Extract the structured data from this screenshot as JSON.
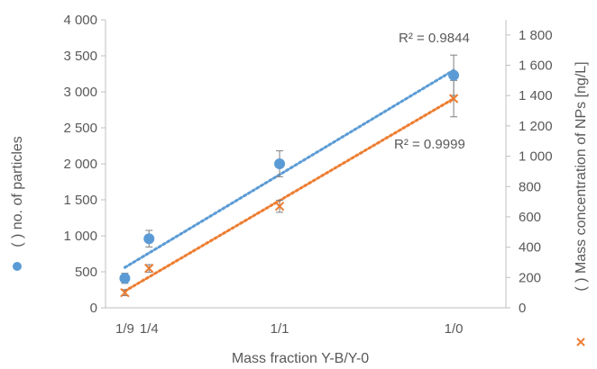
{
  "chart_data": {
    "type": "scatter",
    "xlabel": "Mass fraction Y-B/Y-0",
    "x_categories": [
      "1/9",
      "1/4",
      "1/1",
      "1/0"
    ],
    "x_numeric": [
      0.111,
      0.25,
      1.0,
      2.0
    ],
    "y_left": {
      "label_prefix": "(",
      "label_suffix": ") no. of particles",
      "range": [
        0,
        4000
      ],
      "ticks": [
        0,
        500,
        1000,
        1500,
        2000,
        2500,
        3000,
        3500,
        4000
      ],
      "tick_labels": [
        "0",
        "500",
        "1 000",
        "1 500",
        "2 000",
        "2 500",
        "3 000",
        "3 500",
        "4 000"
      ]
    },
    "y_right": {
      "label_prefix": "(",
      "label_suffix": ") Mass concentration of NPs [ng/L]",
      "range": [
        0,
        1900
      ],
      "ticks": [
        0,
        200,
        400,
        600,
        800,
        1000,
        1200,
        1400,
        1600,
        1800
      ],
      "tick_labels": [
        "0",
        "200",
        "400",
        "600",
        "800",
        "1 000",
        "1 200",
        "1 400",
        "1 600",
        "1 800"
      ]
    },
    "series": [
      {
        "axis": "left",
        "marker": "circle",
        "color": "#5B9BD5",
        "x": [
          0.111,
          0.25,
          1.0,
          2.0
        ],
        "y": [
          410,
          960,
          2000,
          3230
        ],
        "err": [
          70,
          115,
          180,
          280
        ],
        "trend": {
          "x": [
            0.111,
            2.0
          ],
          "y": [
            560,
            3300
          ]
        },
        "r2_label": "R² = 0.9844"
      },
      {
        "axis": "right",
        "marker": "x",
        "color": "#ED7D31",
        "x": [
          0.111,
          0.25,
          1.0,
          2.0
        ],
        "y": [
          100,
          260,
          670,
          1380
        ],
        "err": [
          20,
          25,
          40,
          120
        ],
        "trend": {
          "x": [
            0.111,
            2.0
          ],
          "y": [
            110,
            1380
          ]
        },
        "r2_label": "R² = 0.9999"
      }
    ],
    "grid": false,
    "legend": "none"
  }
}
